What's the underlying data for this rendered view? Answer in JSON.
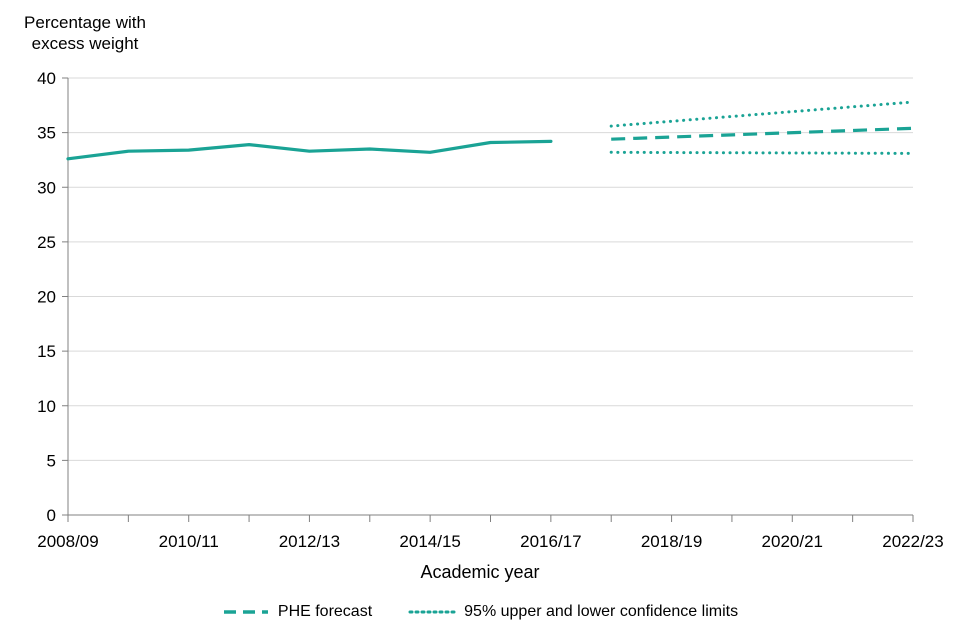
{
  "chart_data": {
    "type": "line",
    "ylabel": "Percentage with excess weight",
    "xlabel": "Academic year",
    "ylim": [
      0,
      40
    ],
    "yticks": [
      0,
      5,
      10,
      15,
      20,
      25,
      30,
      35,
      40
    ],
    "x_categories": [
      "2008/09",
      "2009/10",
      "2010/11",
      "2011/12",
      "2012/13",
      "2013/14",
      "2014/15",
      "2015/16",
      "2016/17",
      "2017/18",
      "2018/19",
      "2019/20",
      "2020/21",
      "2021/22",
      "2022/23"
    ],
    "x_tick_labels": [
      "2008/09",
      "2010/11",
      "2012/13",
      "2014/15",
      "2016/17",
      "2018/19",
      "2020/21",
      "2022/23"
    ],
    "grid": "horizontal",
    "legend_position": "bottom",
    "series": [
      {
        "style": "solid",
        "x": [
          "2008/09",
          "2009/10",
          "2010/11",
          "2011/12",
          "2012/13",
          "2013/14",
          "2014/15",
          "2015/16",
          "2016/17"
        ],
        "values": [
          32.6,
          33.3,
          33.4,
          33.9,
          33.3,
          33.5,
          33.2,
          34.1,
          34.2
        ]
      },
      {
        "name": "PHE forecast",
        "style": "dashed",
        "x": [
          "2017/18",
          "2022/23"
        ],
        "values": [
          34.4,
          35.4
        ]
      },
      {
        "name": "95% upper and lower confidence limits",
        "style": "dotted",
        "x": [
          "2017/18",
          "2022/23"
        ],
        "values": [
          35.6,
          37.8
        ]
      },
      {
        "style": "dotted",
        "x": [
          "2017/18",
          "2022/23"
        ],
        "values": [
          33.2,
          33.1
        ]
      }
    ],
    "color": "#1aa395"
  },
  "legend": {
    "forecast_label": "PHE forecast",
    "confidence_label": "95% upper and lower confidence limits"
  }
}
